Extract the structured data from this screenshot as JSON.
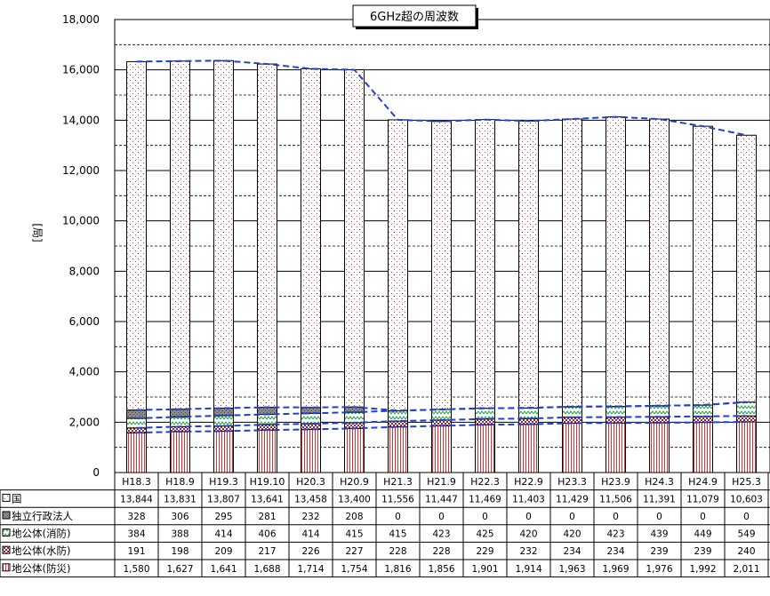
{
  "chart_data": {
    "type": "bar",
    "stacked": true,
    "title": "6GHz超の周波数",
    "ylabel": "[局]",
    "xlabel": "",
    "ylim": [
      0,
      18000
    ],
    "yticks": [
      0,
      2000,
      4000,
      6000,
      8000,
      10000,
      12000,
      14000,
      16000,
      18000
    ],
    "ytick_labels": [
      "0",
      "2,000",
      "4,000",
      "6,000",
      "8,000",
      "10,000",
      "12,000",
      "14,000",
      "16,000",
      "18,000"
    ],
    "grid": true,
    "categories": [
      "H18.3",
      "H18.9",
      "H19.3",
      "H19.10",
      "H20.3",
      "H20.9",
      "H21.3",
      "H21.9",
      "H22.3",
      "H22.9",
      "H23.3",
      "H23.9",
      "H24.3",
      "H24.9",
      "H25.3"
    ],
    "series": [
      {
        "name": "地公体(防災)",
        "color": "#e06060",
        "values": [
          1580,
          1627,
          1641,
          1688,
          1714,
          1754,
          1816,
          1856,
          1901,
          1914,
          1963,
          1969,
          1976,
          1992,
          2011
        ],
        "labels": [
          "1,580",
          "1,627",
          "1,641",
          "1,688",
          "1,714",
          "1,754",
          "1,816",
          "1,856",
          "1,901",
          "1,914",
          "1,963",
          "1,969",
          "1,976",
          "1,992",
          "2,011"
        ]
      },
      {
        "name": "地公体(水防)",
        "color": "#a02020",
        "values": [
          191,
          198,
          209,
          217,
          226,
          227,
          228,
          228,
          229,
          232,
          234,
          234,
          239,
          239,
          240
        ],
        "labels": [
          "191",
          "198",
          "209",
          "217",
          "226",
          "227",
          "228",
          "228",
          "229",
          "232",
          "234",
          "234",
          "239",
          "239",
          "240"
        ]
      },
      {
        "name": "地公体(消防)",
        "color": "#40a060",
        "values": [
          384,
          388,
          414,
          406,
          414,
          415,
          415,
          423,
          425,
          420,
          420,
          423,
          439,
          449,
          549
        ],
        "labels": [
          "384",
          "388",
          "414",
          "406",
          "414",
          "415",
          "415",
          "423",
          "425",
          "420",
          "420",
          "423",
          "439",
          "449",
          "549"
        ]
      },
      {
        "name": "独立行政法人",
        "color": "#707070",
        "values": [
          328,
          306,
          295,
          281,
          232,
          208,
          0,
          0,
          0,
          0,
          0,
          0,
          0,
          0,
          0
        ],
        "labels": [
          "328",
          "306",
          "295",
          "281",
          "232",
          "208",
          "0",
          "0",
          "0",
          "0",
          "0",
          "0",
          "0",
          "0",
          "0"
        ]
      },
      {
        "name": "国",
        "color": "#e08080",
        "values": [
          13844,
          13831,
          13807,
          13641,
          13458,
          13400,
          11556,
          11447,
          11469,
          11403,
          11429,
          11506,
          11391,
          11079,
          10603
        ],
        "labels": [
          "13,844",
          "13,831",
          "13,807",
          "13,641",
          "13,458",
          "13,400",
          "11,556",
          "11,447",
          "11,469",
          "11,403",
          "11,429",
          "11,506",
          "11,391",
          "11,079",
          "10,603"
        ]
      }
    ],
    "table_rows": [
      {
        "label": "国",
        "values": [
          "13,844",
          "13,831",
          "13,807",
          "13,641",
          "13,458",
          "13,400",
          "11,556",
          "11,447",
          "11,469",
          "11,403",
          "11,429",
          "11,506",
          "11,391",
          "11,079",
          "10,603"
        ]
      },
      {
        "label": "独立行政法人",
        "values": [
          "328",
          "306",
          "295",
          "281",
          "232",
          "208",
          "0",
          "0",
          "0",
          "0",
          "0",
          "0",
          "0",
          "0",
          "0"
        ]
      },
      {
        "label": "地公体(消防)",
        "values": [
          "384",
          "388",
          "414",
          "406",
          "414",
          "415",
          "415",
          "423",
          "425",
          "420",
          "420",
          "423",
          "439",
          "449",
          "549"
        ]
      },
      {
        "label": "地公体(水防)",
        "values": [
          "191",
          "198",
          "209",
          "217",
          "226",
          "227",
          "228",
          "228",
          "229",
          "232",
          "234",
          "234",
          "239",
          "239",
          "240"
        ]
      },
      {
        "label": "地公体(防災)",
        "values": [
          "1,580",
          "1,627",
          "1,641",
          "1,688",
          "1,714",
          "1,754",
          "1,816",
          "1,856",
          "1,901",
          "1,914",
          "1,963",
          "1,969",
          "1,976",
          "1,992",
          "2,011"
        ]
      }
    ],
    "line_color": "#2040d0"
  }
}
